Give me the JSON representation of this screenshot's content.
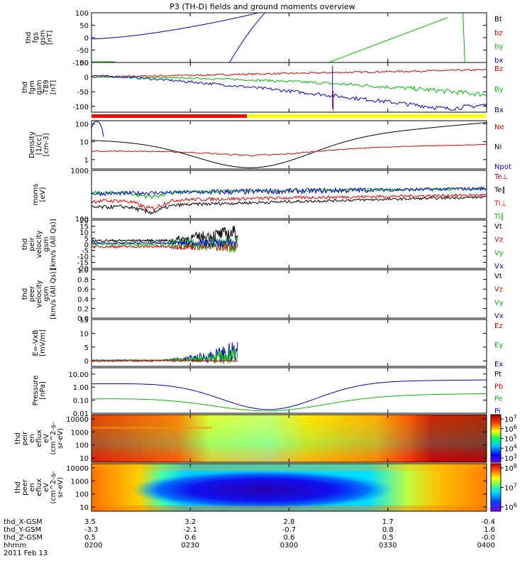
{
  "chart_data": {
    "type": "line",
    "title": "P3 (TH-D) fields and ground moments overview",
    "date": "2011 Feb 13",
    "time_ticks": [
      "0200",
      "0230",
      "0300",
      "0330",
      "0400"
    ],
    "orbit_rows": [
      {
        "label": "thd_X-GSM",
        "values": [
          "3.5",
          "3.2",
          "2.8",
          "1.7",
          "-0.4"
        ]
      },
      {
        "label": "thd_Y-GSM",
        "values": [
          "-3.3",
          "-2.1",
          "-0.7",
          "0.8",
          "1.6"
        ]
      },
      {
        "label": "thd_Z-GSM",
        "values": [
          "0.5",
          "0.6",
          "0.6",
          "0.5",
          "-0.0"
        ]
      },
      {
        "label": "hhmm",
        "values": [
          "0200",
          "0230",
          "0300",
          "0330",
          "0400"
        ]
      }
    ],
    "panels": [
      {
        "id": "fgs",
        "ylabel": [
          "thd",
          "fgs",
          "gsm",
          "[nT]"
        ],
        "ylim": [
          -100,
          100
        ],
        "ticks": [
          "100",
          "50",
          "0",
          "-50",
          "-100"
        ],
        "legend": [
          {
            "text": "Bt",
            "color": "#000000"
          },
          {
            "text": "bz",
            "color": "#dd0000"
          },
          {
            "text": "by",
            "color": "#00bb00"
          },
          {
            "text": "bx",
            "color": "#0000cc"
          }
        ]
      },
      {
        "id": "fgm",
        "ylabel": [
          "thd",
          "fgm",
          "gsm",
          "-T89",
          "[nT]"
        ],
        "ylim": [
          -120,
          50
        ],
        "ticks": [
          "50",
          "0",
          "-50",
          "-100"
        ],
        "legend": [
          {
            "text": "Bz",
            "color": "#dd0000"
          },
          {
            "text": "By",
            "color": "#00bb00"
          },
          {
            "text": "Bx",
            "color": "#0000cc"
          }
        ]
      },
      {
        "id": "density",
        "ylabel": [
          "Density",
          "[1/cc]",
          "[cm-3]"
        ],
        "ylim": [
          0.3,
          150
        ],
        "log": true,
        "ticks": [
          "100",
          "10",
          "1"
        ],
        "legend": [
          {
            "text": "Ne",
            "color": "#dd0000"
          },
          {
            "text": "Ni",
            "color": "#000000"
          },
          {
            "text": "Npot",
            "color": "#0000cc"
          }
        ]
      },
      {
        "id": "temp",
        "ylabel": [
          "moms",
          "[eV]"
        ],
        "ylim": [
          100,
          1000
        ],
        "log": true,
        "ticks": [
          "1000",
          "100"
        ],
        "legend": [
          {
            "text": "Te⊥",
            "color": "#dd0000"
          },
          {
            "text": "Te∥",
            "color": "#000000"
          },
          {
            "text": "Ti⊥",
            "color": "#dd0000"
          },
          {
            "text": "Ti∥",
            "color": "#00bb00"
          }
        ]
      },
      {
        "id": "peir_vel",
        "ylabel": [
          "thd",
          "peir",
          "velocity",
          "gsm",
          "[km/s (All Qs)]"
        ],
        "ylim": [
          -20,
          20
        ],
        "ticks": [
          "20",
          "15",
          "10",
          "5",
          "0",
          "-5",
          "-10",
          "-15",
          "-20"
        ],
        "legend": [
          {
            "text": "Vt",
            "color": "#000000"
          },
          {
            "text": "Vz",
            "color": "#dd0000"
          },
          {
            "text": "Vy",
            "color": "#00bb00"
          },
          {
            "text": "Vx",
            "color": "#0000cc"
          }
        ]
      },
      {
        "id": "peer_vel",
        "ylabel": [
          "thd",
          "peer",
          "velocity",
          "gsm",
          "[km/s (All Qs)]"
        ],
        "ylim": [
          0,
          1
        ],
        "ticks": [
          "1.0",
          "0.8",
          "0.6",
          "0.4",
          "0.2",
          "0.0"
        ],
        "legend": [
          {
            "text": "Vt",
            "color": "#000000"
          },
          {
            "text": "Vz",
            "color": "#dd0000"
          },
          {
            "text": "Vy",
            "color": "#00bb00"
          },
          {
            "text": "Vx",
            "color": "#0000cc"
          }
        ]
      },
      {
        "id": "efield",
        "ylabel": [
          "E=-VxB",
          "[mV/m]"
        ],
        "ylim": [
          -2,
          15
        ],
        "ticks": [
          "15",
          "10",
          "5",
          "0"
        ],
        "legend": [
          {
            "text": "Ez",
            "color": "#dd0000"
          },
          {
            "text": "Ey",
            "color": "#00bb00"
          },
          {
            "text": "Ex",
            "color": "#0000cc"
          }
        ]
      },
      {
        "id": "pressure",
        "ylabel": [
          "Pressure",
          "[nPa]"
        ],
        "ylim": [
          0.01,
          30
        ],
        "log": true,
        "ticks": [
          "10.00",
          "1.00",
          "0.10",
          "0.01"
        ],
        "legend": [
          {
            "text": "Pt",
            "color": "#000000"
          },
          {
            "text": "Pb",
            "color": "#dd0000"
          },
          {
            "text": "Pe",
            "color": "#00bb00"
          },
          {
            "text": "Pi",
            "color": "#0000cc"
          }
        ]
      },
      {
        "id": "peir_en",
        "ylabel": [
          "thd",
          "peir",
          "en",
          "eflux",
          "eV",
          "(cm^2-s-",
          "sr-eV)"
        ],
        "ticks": [
          "10000",
          "1000",
          "100",
          "10"
        ],
        "colorbar_ticks": [
          "10^7",
          "10^6",
          "10^5",
          "10^4",
          "10^3"
        ]
      },
      {
        "id": "peer_en",
        "ylabel": [
          "thd",
          "peer",
          "en",
          "eflux",
          "eV",
          "(cm^2-s-",
          "sr-eV)"
        ],
        "ticks": [
          "10000",
          "1000",
          "100",
          "10"
        ],
        "colorbar_ticks": [
          "10^8",
          "10^7",
          "10^6"
        ]
      }
    ]
  }
}
